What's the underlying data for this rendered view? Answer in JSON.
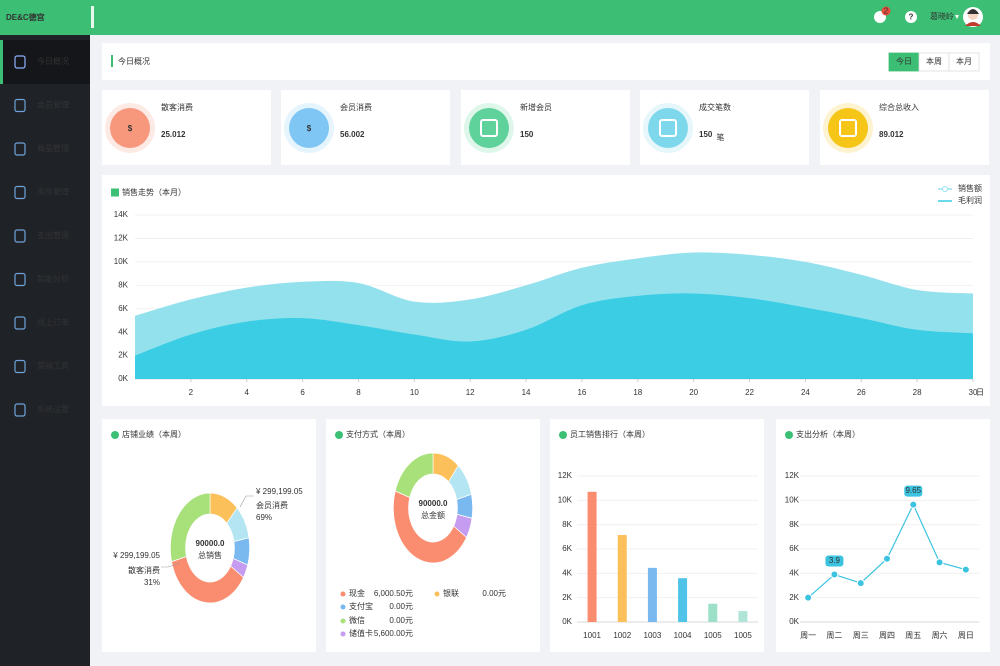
{
  "header": {
    "logo": "DE&C德宫",
    "notification_count": "2",
    "help": "?",
    "user": "葛晓岭"
  },
  "sidebar": {
    "items": [
      "今日概况",
      "会员管理",
      "商品管理",
      "库存管理",
      "支出管理",
      "智能分析",
      "线上订单",
      "营销工具",
      "系统设置"
    ],
    "active": 0
  },
  "overview": {
    "title": "今日概况",
    "tabs": [
      "今日",
      "本周",
      "本月"
    ],
    "active_tab": 0
  },
  "stats": [
    {
      "label": "散客消费",
      "value": "25.012",
      "icon": "$",
      "color": "#f7987c"
    },
    {
      "label": "会员消费",
      "value": "56.002",
      "icon": "$",
      "color": "#7fc6f5"
    },
    {
      "label": "新增会员",
      "value": "150",
      "color": "#5fd19a"
    },
    {
      "label": "成交笔数",
      "value": "150",
      "unit": "笔",
      "color": "#7ed8ec"
    },
    {
      "label": "综合总收入",
      "value": "89.012",
      "color": "#f5c518"
    }
  ],
  "sales_trend": {
    "type": "area",
    "title": "销售走势（本月）",
    "x": [
      0,
      2,
      4,
      6,
      8,
      10,
      12,
      14,
      16,
      18,
      20,
      22,
      24,
      26,
      28,
      30
    ],
    "xlim": [
      0,
      30
    ],
    "xticks": [
      2,
      4,
      6,
      8,
      10,
      12,
      14,
      16,
      18,
      20,
      22,
      24,
      26,
      28,
      30
    ],
    "x_unit": "日",
    "ylim": [
      0,
      14000
    ],
    "yticks": [
      {
        "value": 0,
        "label": "0K"
      },
      {
        "value": 2000,
        "label": "2K"
      },
      {
        "value": 4000,
        "label": "4K"
      },
      {
        "value": 6000,
        "label": "6K"
      },
      {
        "value": 8000,
        "label": "8K"
      },
      {
        "value": 10000,
        "label": "10K"
      },
      {
        "value": 12000,
        "label": "12K"
      },
      {
        "value": 14000,
        "label": "14K"
      }
    ],
    "grid": true,
    "series": [
      {
        "name": "销售额",
        "color": "#94e1ee",
        "values": [
          5400,
          6800,
          7800,
          8300,
          8200,
          6600,
          6800,
          8000,
          9500,
          10300,
          10800,
          10600,
          10000,
          8900,
          7600,
          7300
        ]
      },
      {
        "name": "毛利润",
        "color": "#3bcde3",
        "values": [
          2000,
          3800,
          4900,
          5200,
          4600,
          3800,
          3200,
          4200,
          6300,
          7100,
          7300,
          6900,
          6100,
          5200,
          4200,
          3900
        ]
      }
    ]
  },
  "store_performance": {
    "type": "donut",
    "title": "店铺业绩（本周）",
    "center_value": "90000.0",
    "center_label": "总销售",
    "values": [
      12,
      10,
      8,
      4,
      37,
      29
    ],
    "colors": [
      "#fcc05a",
      "#b3e6f2",
      "#7ab8f0",
      "#c59cf0",
      "#fa8c6f",
      "#a8e07a"
    ],
    "callouts": [
      {
        "amount": "¥ 299,199.05",
        "name": "会员消费",
        "percent": "69%"
      },
      {
        "amount": "¥ 299,199.05",
        "name": "散客消费",
        "percent": "31%"
      }
    ]
  },
  "payment": {
    "type": "donut",
    "title": "支付方式（本周）",
    "center_value": "90000.0",
    "center_label": "总金额",
    "values": [
      11,
      10,
      7,
      6,
      46,
      20
    ],
    "colors": [
      "#fcc05a",
      "#b3e6f2",
      "#7ab8f0",
      "#c59cf0",
      "#fa8c6f",
      "#a8e07a"
    ],
    "legend": [
      {
        "name": "现金",
        "amount": "6,000.50元",
        "color": "#fa8c6f"
      },
      {
        "name": "银联",
        "amount": "0.00元",
        "color": "#fcc05a"
      },
      {
        "name": "支付宝",
        "amount": "0.00元",
        "color": "#7ab8f0"
      },
      {
        "name": "微信",
        "amount": "0.00元",
        "color": "#a8e07a"
      },
      {
        "name": "储值卡",
        "amount": "5,600.00元",
        "color": "#c59cf0"
      }
    ]
  },
  "staff_ranking": {
    "type": "bar",
    "title": "员工销售排行（本周）",
    "categories": [
      "1001",
      "1002",
      "1003",
      "1004",
      "1005",
      "1005"
    ],
    "values": [
      10700,
      7150,
      4450,
      3600,
      1500,
      900
    ],
    "colors": [
      "#fa8c6f",
      "#fcc05a",
      "#7ab8f0",
      "#4fc3e8",
      "#9de0c8",
      "#b0e4d6"
    ],
    "ylim": [
      0,
      12000
    ],
    "yticks": [
      {
        "value": 0,
        "label": "0K"
      },
      {
        "value": 2000,
        "label": "2K"
      },
      {
        "value": 4000,
        "label": "4K"
      },
      {
        "value": 6000,
        "label": "6K"
      },
      {
        "value": 8000,
        "label": "8K"
      },
      {
        "value": 10000,
        "label": "10K"
      },
      {
        "value": 12000,
        "label": "12K"
      }
    ]
  },
  "expenses": {
    "type": "line",
    "title": "支出分析（本周）",
    "categories": [
      "周一",
      "周二",
      "周三",
      "周四",
      "周五",
      "周六",
      "周日"
    ],
    "values": [
      2000,
      3900,
      3200,
      5200,
      9650,
      4900,
      4300
    ],
    "value_labels": [
      null,
      "3.9",
      null,
      null,
      "9.65",
      null,
      null
    ],
    "color": "#3bc3e0",
    "ylim": [
      0,
      12000
    ],
    "yticks": [
      {
        "value": 0,
        "label": "0K"
      },
      {
        "value": 2000,
        "label": "2K"
      },
      {
        "value": 4000,
        "label": "4K"
      },
      {
        "value": 6000,
        "label": "6K"
      },
      {
        "value": 8000,
        "label": "8K"
      },
      {
        "value": 10000,
        "label": "10K"
      },
      {
        "value": 12000,
        "label": "12K"
      }
    ]
  }
}
